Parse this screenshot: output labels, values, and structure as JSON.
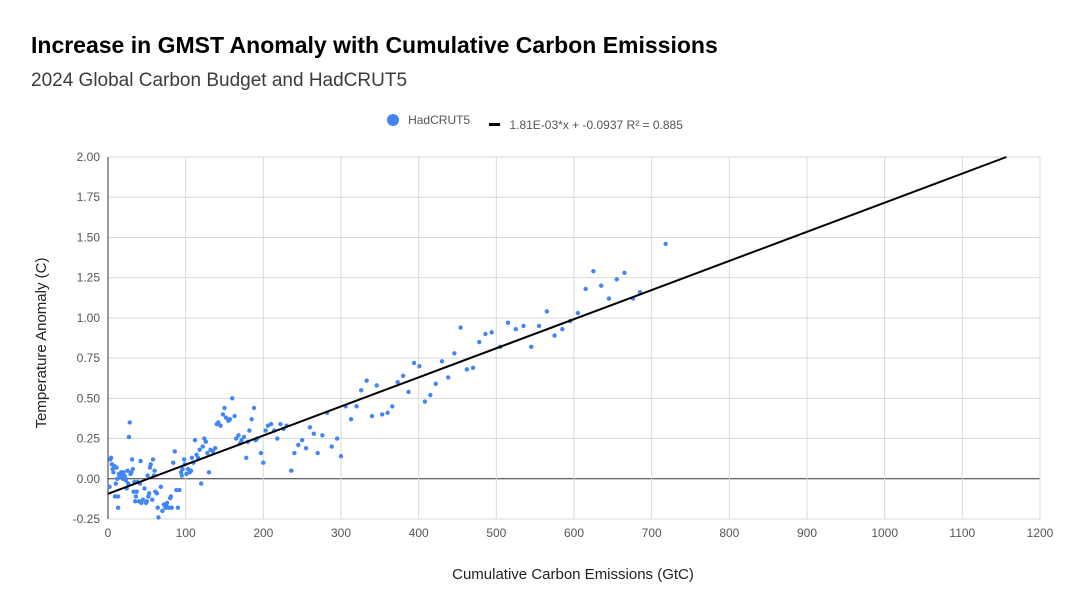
{
  "chart_data": {
    "type": "scatter",
    "title": "Increase in GMST Anomaly with Cumulative Carbon Emissions",
    "subtitle": "2024 Global Carbon Budget and HadCRUT5",
    "xlabel": "Cumulative Carbon Emissions (GtC)",
    "ylabel": "Temperature Anomaly (C)",
    "xlim": [
      0,
      1200
    ],
    "ylim": [
      -0.25,
      2.0
    ],
    "x_ticks": [
      "0",
      "100",
      "200",
      "300",
      "400",
      "500",
      "600",
      "700",
      "800",
      "900",
      "1000",
      "1100",
      "1200"
    ],
    "y_ticks": [
      "-0.25",
      "0.00",
      "0.25",
      "0.50",
      "0.75",
      "1.00",
      "1.25",
      "1.50",
      "1.75",
      "2.00"
    ],
    "colors": {
      "scatter": "#4285f4",
      "trendline": "#000000",
      "grid": "#d9d9d9"
    },
    "series": [
      {
        "name": "HadCRUT5",
        "kind": "scatter",
        "points": [
          [
            2,
            -0.05
          ],
          [
            3,
            0.12
          ],
          [
            4,
            0.13
          ],
          [
            5,
            0.09
          ],
          [
            6,
            0.06
          ],
          [
            7,
            0.04
          ],
          [
            8,
            0.08
          ],
          [
            9,
            -0.11
          ],
          [
            10,
            -0.03
          ],
          [
            11,
            0.07
          ],
          [
            12,
            0.0
          ],
          [
            13,
            -0.11
          ],
          [
            13,
            -0.18
          ],
          [
            14,
            0.03
          ],
          [
            15,
            0.01
          ],
          [
            16,
            0.02
          ],
          [
            17,
            0.04
          ],
          [
            18,
            0.03
          ],
          [
            19,
            0.0
          ],
          [
            20,
            0.04
          ],
          [
            21,
            0.02
          ],
          [
            22,
            0.01
          ],
          [
            23,
            -0.01
          ],
          [
            24,
            -0.06
          ],
          [
            25,
            0.05
          ],
          [
            26,
            -0.03
          ],
          [
            27,
            0.26
          ],
          [
            28,
            0.35
          ],
          [
            29,
            0.03
          ],
          [
            30,
            0.04
          ],
          [
            31,
            0.12
          ],
          [
            32,
            0.06
          ],
          [
            33,
            -0.08
          ],
          [
            34,
            -0.02
          ],
          [
            35,
            -0.14
          ],
          [
            36,
            -0.11
          ],
          [
            37,
            -0.08
          ],
          [
            38,
            -0.02
          ],
          [
            40,
            -0.14
          ],
          [
            41,
            -0.03
          ],
          [
            42,
            0.11
          ],
          [
            43,
            -0.15
          ],
          [
            45,
            -0.13
          ],
          [
            47,
            -0.06
          ],
          [
            49,
            -0.15
          ],
          [
            50,
            -0.14
          ],
          [
            51,
            0.02
          ],
          [
            52,
            -0.11
          ],
          [
            53,
            -0.09
          ],
          [
            54,
            0.07
          ],
          [
            55,
            0.09
          ],
          [
            57,
            -0.13
          ],
          [
            58,
            0.12
          ],
          [
            59,
            0.02
          ],
          [
            60,
            0.05
          ],
          [
            61,
            -0.08
          ],
          [
            63,
            -0.09
          ],
          [
            64,
            -0.18
          ],
          [
            65,
            -0.24
          ],
          [
            68,
            -0.05
          ],
          [
            70,
            -0.2
          ],
          [
            72,
            -0.16
          ],
          [
            74,
            -0.18
          ],
          [
            75,
            -0.17
          ],
          [
            76,
            -0.15
          ],
          [
            78,
            -0.18
          ],
          [
            80,
            -0.12
          ],
          [
            81,
            -0.11
          ],
          [
            82,
            -0.18
          ],
          [
            84,
            0.1
          ],
          [
            86,
            0.17
          ],
          [
            88,
            -0.07
          ],
          [
            90,
            -0.18
          ],
          [
            92,
            -0.07
          ],
          [
            94,
            0.04
          ],
          [
            95,
            0.02
          ],
          [
            96,
            0.06
          ],
          [
            98,
            0.12
          ],
          [
            99,
            0.09
          ],
          [
            101,
            0.03
          ],
          [
            103,
            0.06
          ],
          [
            105,
            0.04
          ],
          [
            107,
            0.05
          ],
          [
            108,
            0.13
          ],
          [
            110,
            0.1
          ],
          [
            112,
            0.24
          ],
          [
            114,
            0.15
          ],
          [
            116,
            0.13
          ],
          [
            118,
            0.18
          ],
          [
            120,
            -0.03
          ],
          [
            122,
            0.2
          ],
          [
            124,
            0.25
          ],
          [
            126,
            0.23
          ],
          [
            128,
            0.16
          ],
          [
            130,
            0.04
          ],
          [
            132,
            0.18
          ],
          [
            135,
            0.17
          ],
          [
            138,
            0.19
          ],
          [
            140,
            0.34
          ],
          [
            142,
            0.35
          ],
          [
            145,
            0.33
          ],
          [
            148,
            0.4
          ],
          [
            150,
            0.44
          ],
          [
            152,
            0.38
          ],
          [
            155,
            0.36
          ],
          [
            157,
            0.37
          ],
          [
            160,
            0.5
          ],
          [
            163,
            0.39
          ],
          [
            165,
            0.25
          ],
          [
            168,
            0.27
          ],
          [
            170,
            0.22
          ],
          [
            172,
            0.24
          ],
          [
            175,
            0.26
          ],
          [
            178,
            0.13
          ],
          [
            180,
            0.23
          ],
          [
            182,
            0.3
          ],
          [
            185,
            0.37
          ],
          [
            188,
            0.44
          ],
          [
            190,
            0.24
          ],
          [
            192,
            0.25
          ],
          [
            197,
            0.16
          ],
          [
            200,
            0.1
          ],
          [
            203,
            0.3
          ],
          [
            206,
            0.33
          ],
          [
            210,
            0.34
          ],
          [
            214,
            0.3
          ],
          [
            218,
            0.25
          ],
          [
            222,
            0.34
          ],
          [
            226,
            0.31
          ],
          [
            230,
            0.33
          ],
          [
            236,
            0.05
          ],
          [
            240,
            0.16
          ],
          [
            245,
            0.21
          ],
          [
            250,
            0.24
          ],
          [
            255,
            0.19
          ],
          [
            260,
            0.32
          ],
          [
            265,
            0.28
          ],
          [
            270,
            0.16
          ],
          [
            276,
            0.27
          ],
          [
            282,
            0.41
          ],
          [
            288,
            0.2
          ],
          [
            295,
            0.25
          ],
          [
            300,
            0.14
          ],
          [
            306,
            0.45
          ],
          [
            313,
            0.37
          ],
          [
            320,
            0.45
          ],
          [
            326,
            0.55
          ],
          [
            333,
            0.61
          ],
          [
            340,
            0.39
          ],
          [
            346,
            0.58
          ],
          [
            353,
            0.4
          ],
          [
            360,
            0.41
          ],
          [
            366,
            0.45
          ],
          [
            373,
            0.6
          ],
          [
            380,
            0.64
          ],
          [
            387,
            0.54
          ],
          [
            394,
            0.72
          ],
          [
            401,
            0.7
          ],
          [
            408,
            0.48
          ],
          [
            415,
            0.52
          ],
          [
            422,
            0.59
          ],
          [
            430,
            0.73
          ],
          [
            438,
            0.63
          ],
          [
            446,
            0.78
          ],
          [
            454,
            0.94
          ],
          [
            462,
            0.68
          ],
          [
            470,
            0.69
          ],
          [
            478,
            0.85
          ],
          [
            486,
            0.9
          ],
          [
            494,
            0.91
          ],
          [
            505,
            0.82
          ],
          [
            515,
            0.97
          ],
          [
            525,
            0.93
          ],
          [
            535,
            0.95
          ],
          [
            545,
            0.82
          ],
          [
            555,
            0.95
          ],
          [
            565,
            1.04
          ],
          [
            575,
            0.89
          ],
          [
            585,
            0.93
          ],
          [
            595,
            0.98
          ],
          [
            605,
            1.03
          ],
          [
            615,
            1.18
          ],
          [
            625,
            1.29
          ],
          [
            635,
            1.2
          ],
          [
            645,
            1.12
          ],
          [
            655,
            1.24
          ],
          [
            665,
            1.28
          ],
          [
            676,
            1.12
          ],
          [
            685,
            1.16
          ],
          [
            718,
            1.46
          ]
        ]
      },
      {
        "name": "1.81E-03*x + -0.0937 R² = 0.885",
        "kind": "trendline",
        "slope": 0.00181,
        "intercept": -0.0937,
        "r2": 0.885
      }
    ]
  }
}
